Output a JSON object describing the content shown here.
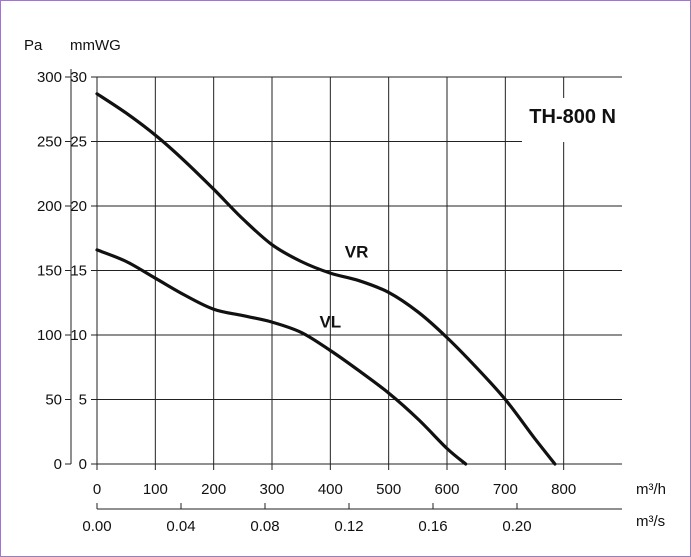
{
  "chart_data": {
    "type": "line",
    "title": "TH-800 N",
    "y_units": {
      "left": "Pa",
      "right": "mmWG"
    },
    "y_ticks_pa": [
      "0",
      "50",
      "100",
      "150",
      "200",
      "250",
      "300"
    ],
    "y_ticks_mmwg": [
      "0",
      "5",
      "10",
      "15",
      "20",
      "25",
      "30"
    ],
    "x_ticks_m3h": [
      "0",
      "100",
      "200",
      "300",
      "400",
      "500",
      "600",
      "700",
      "800"
    ],
    "x_ticks_m3s": [
      "0.00",
      "0.04",
      "0.08",
      "0.12",
      "0.16",
      "0.20"
    ],
    "x_unit_m3h": "m³/h",
    "x_unit_m3s": "m³/s",
    "xlim": [
      0,
      900
    ],
    "ylim": [
      0,
      300
    ],
    "grid": true,
    "series": [
      {
        "name": "VR",
        "x": [
          0,
          50,
          100,
          150,
          200,
          250,
          300,
          350,
          400,
          450,
          500,
          550,
          600,
          650,
          700,
          750,
          785
        ],
        "y": [
          287,
          272,
          255,
          235,
          213,
          190,
          170,
          157,
          148,
          142,
          133,
          118,
          98,
          75,
          50,
          20,
          0
        ]
      },
      {
        "name": "VL",
        "x": [
          0,
          50,
          100,
          150,
          200,
          250,
          300,
          350,
          400,
          450,
          500,
          550,
          600,
          632
        ],
        "y": [
          166,
          157,
          144,
          131,
          120,
          115,
          110,
          102,
          88,
          72,
          55,
          35,
          12,
          0
        ]
      }
    ]
  }
}
